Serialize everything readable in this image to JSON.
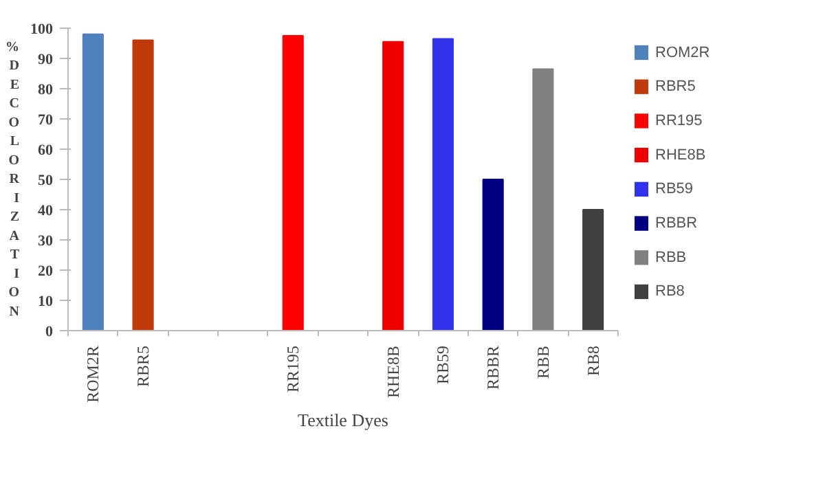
{
  "chart_data": {
    "type": "bar",
    "xlabel": "Textile Dyes",
    "ylabel": "% DECOLORIZATION",
    "categories": [
      "ROM2R",
      "RBR5",
      null,
      null,
      "RR195",
      null,
      "RHE8B",
      "RB59",
      "RBBR",
      "RBB",
      "RB8"
    ],
    "series": [
      {
        "name": "ROM2R",
        "color": "#4f81bd",
        "values": [
          98,
          null,
          null,
          null,
          null,
          null,
          null,
          null,
          null,
          null,
          null
        ]
      },
      {
        "name": "RBR5",
        "color": "#c0390b",
        "values": [
          null,
          96,
          null,
          null,
          null,
          null,
          null,
          null,
          null,
          null,
          null
        ]
      },
      {
        "name": "RR195",
        "color": "#ff0000",
        "values": [
          null,
          null,
          null,
          null,
          97.5,
          null,
          null,
          null,
          null,
          null,
          null
        ]
      },
      {
        "name": "RHE8B",
        "color": "#ee0000",
        "values": [
          null,
          null,
          null,
          null,
          null,
          null,
          95.5,
          null,
          null,
          null,
          null
        ]
      },
      {
        "name": "RB59",
        "color": "#3333ee",
        "values": [
          null,
          null,
          null,
          null,
          null,
          null,
          null,
          96.5,
          null,
          null,
          null
        ]
      },
      {
        "name": "RBBR",
        "color": "#000080",
        "values": [
          null,
          null,
          null,
          null,
          null,
          null,
          null,
          null,
          50,
          null,
          null
        ]
      },
      {
        "name": "RBB",
        "color": "#808080",
        "values": [
          null,
          null,
          null,
          null,
          null,
          null,
          null,
          null,
          null,
          86.5,
          null
        ]
      },
      {
        "name": "RB8",
        "color": "#404040",
        "values": [
          null,
          null,
          null,
          null,
          null,
          null,
          null,
          null,
          null,
          null,
          40
        ]
      }
    ],
    "ylim": [
      0,
      100
    ],
    "yticks": [
      0,
      10,
      20,
      30,
      40,
      50,
      60,
      70,
      80,
      90,
      100
    ],
    "grid": false,
    "legend": "right"
  }
}
